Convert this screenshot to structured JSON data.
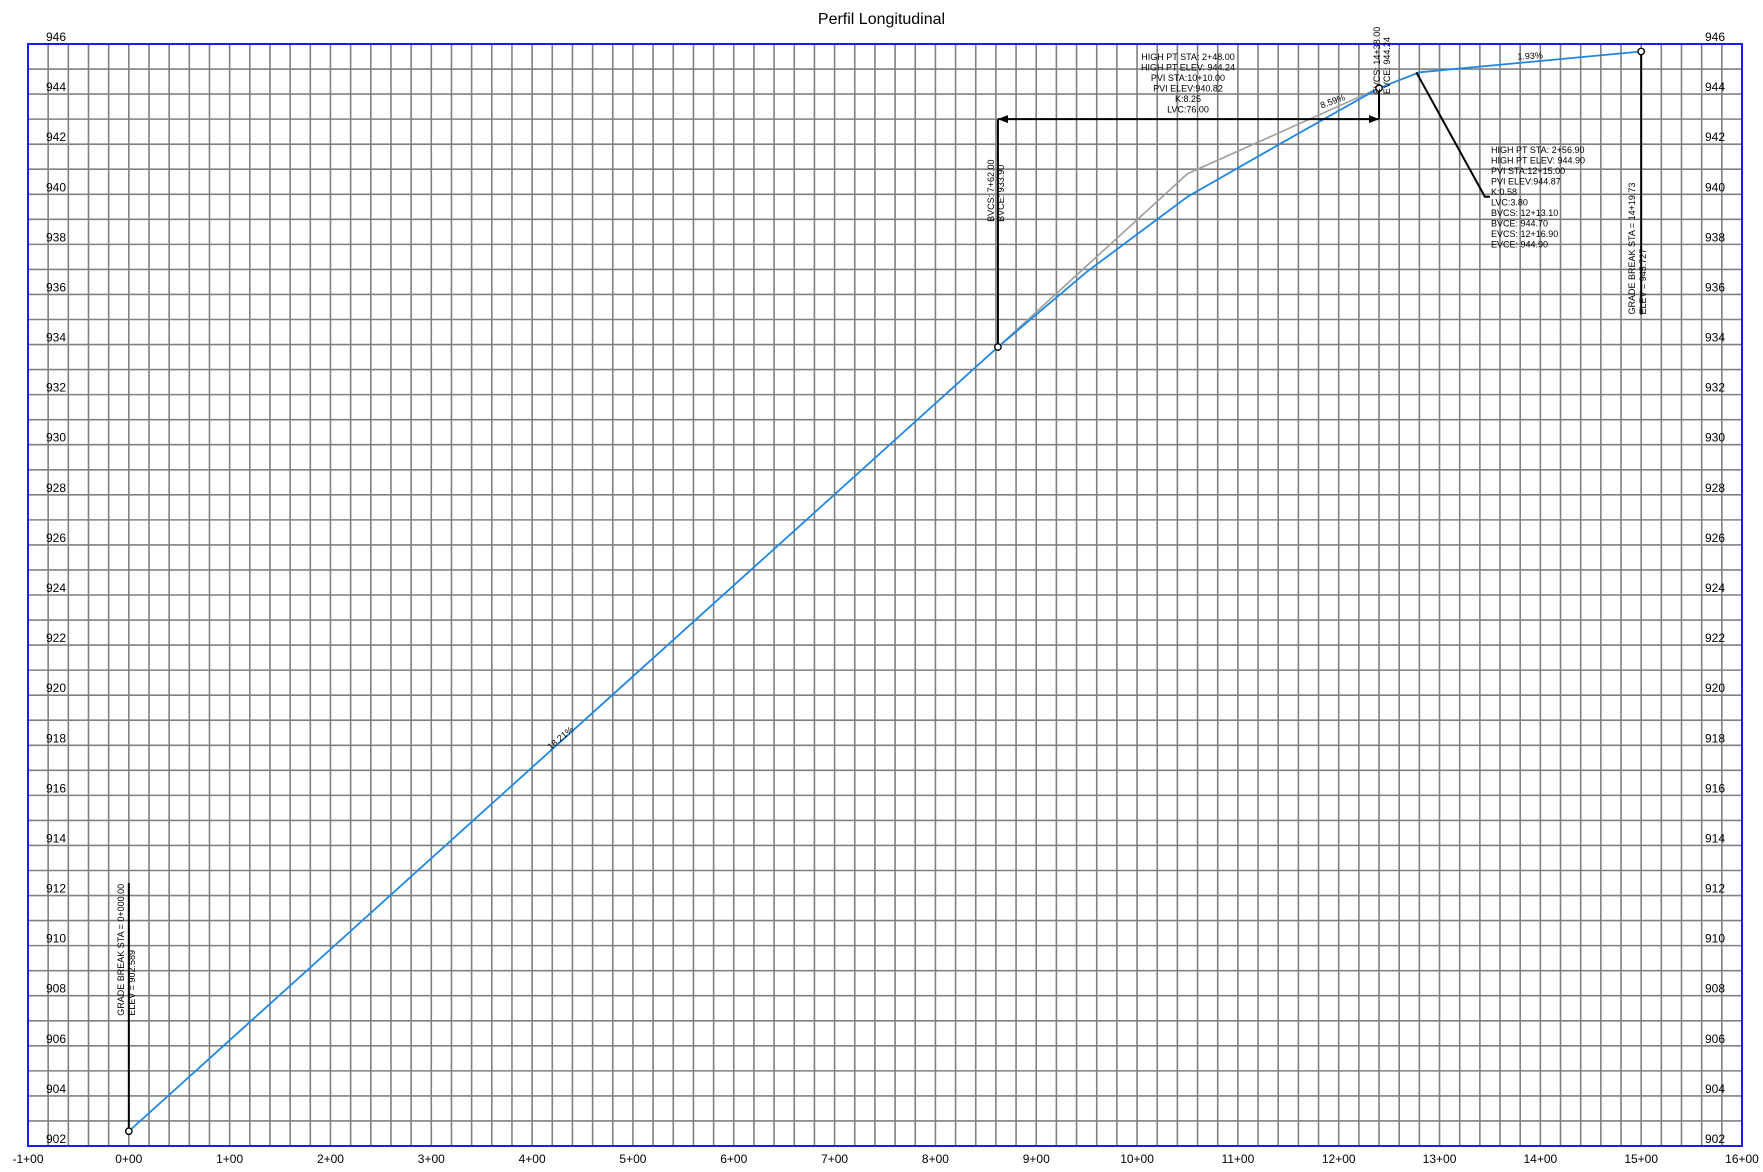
{
  "chart_data": {
    "type": "line",
    "title": "Perfil Longitudinal",
    "xlabel": "",
    "ylabel": "",
    "xlim": [
      -1,
      16
    ],
    "ylim": [
      902,
      946
    ],
    "grid": true,
    "x_tick_labels": [
      "-1+00",
      "0+00",
      "1+00",
      "2+00",
      "3+00",
      "4+00",
      "5+00",
      "6+00",
      "7+00",
      "8+00",
      "9+00",
      "10+00",
      "11+00",
      "12+00",
      "13+00",
      "14+00",
      "15+00",
      "16+00"
    ],
    "y_tick_labels": [
      "902",
      "904",
      "906",
      "908",
      "910",
      "912",
      "914",
      "916",
      "918",
      "920",
      "922",
      "924",
      "926",
      "928",
      "930",
      "932",
      "934",
      "936",
      "938",
      "940",
      "942",
      "944",
      "946"
    ],
    "colors": {
      "profile": "#1e88e5",
      "tangent": "#9e9e9e",
      "frame": "#1a1aff",
      "grid": "#808080",
      "marker": "#000000"
    },
    "series": [
      {
        "values": [
          [
            0.0,
            902.589
          ],
          [
            8.62,
            933.9
          ],
          [
            9.5,
            936.9
          ],
          [
            10.5,
            939.9
          ],
          [
            11.5,
            942.2
          ],
          [
            12.4,
            944.24
          ],
          [
            12.8,
            944.87
          ],
          [
            15.0,
            945.7
          ]
        ]
      },
      {
        "values": [
          [
            8.62,
            933.9
          ],
          [
            10.5,
            940.82
          ],
          [
            12.4,
            944.24
          ]
        ]
      }
    ],
    "markers": [
      [
        0.0,
        902.589
      ],
      [
        8.62,
        933.9
      ],
      [
        12.4,
        944.24
      ],
      [
        15.0,
        945.7
      ]
    ],
    "grade_labels": [
      {
        "text": "18.21%",
        "x": 4.3,
        "y": 918.2
      },
      {
        "text": "8.59%",
        "x": 11.95,
        "y": 943.6
      },
      {
        "text": "1.93%",
        "x": 13.9,
        "y": 945.4
      }
    ],
    "annotations": {
      "grade_break_start": [
        "GRADE BREAK STA = 0+000.00",
        "ELEV = 902.589"
      ],
      "grade_break_end": [
        "GRADE BREAK STA = 14+19.73",
        "ELEV = 945.727"
      ],
      "bvc": [
        "BVCS: 7+62.00",
        "BVCE: 933.90"
      ],
      "evc": [
        "EVCS: 14+38.00",
        "EVCE: 944.24"
      ],
      "curve1": [
        "HIGH PT STA: 2+48.00",
        "HIGH PT ELEV: 944.24",
        "PVI STA:10+10.00",
        "PVI ELEV:940.82",
        "K:8.25",
        "LVC:76.00"
      ],
      "curve2": [
        "HIGH PT STA: 2+56.90",
        "HIGH PT ELEV: 944.90",
        "PVI STA:12+15.00",
        "PVI ELEV:944.87",
        "K:0.58",
        "LVC:3.80",
        "BVCS: 12+13.10",
        "BVCE: 944.70",
        "EVCS: 12+16.90",
        "EVCE: 944.90"
      ]
    }
  }
}
